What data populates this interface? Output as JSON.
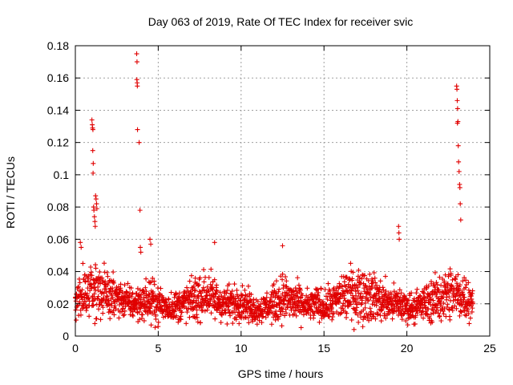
{
  "chart_data": {
    "type": "scatter",
    "title": "Day 063 of 2019, Rate Of TEC Index for receiver svic",
    "xlabel": "GPS time / hours",
    "ylabel": "ROTI / TECUs",
    "xlim": [
      0,
      25
    ],
    "ylim": [
      0,
      0.18
    ],
    "xticks": [
      "0",
      "5",
      "10",
      "15",
      "20",
      "25"
    ],
    "yticks": [
      "0",
      "0.02",
      "0.04",
      "0.06",
      "0.08",
      "0.1",
      "0.12",
      "0.14",
      "0.16",
      "0.18"
    ],
    "xtick_values": [
      0,
      5,
      10,
      15,
      20,
      25
    ],
    "ytick_values": [
      0,
      0.02,
      0.04,
      0.06,
      0.08,
      0.1,
      0.12,
      0.14,
      0.16,
      0.18
    ],
    "grid": true,
    "marker": "+",
    "color": "#e00000",
    "baseline_profile": {
      "x": [
        0,
        0.5,
        1,
        1.5,
        2,
        2.5,
        3,
        3.5,
        4,
        4.5,
        5,
        5.5,
        6,
        6.5,
        7,
        7.5,
        8,
        8.5,
        9,
        9.5,
        10,
        10.5,
        11,
        11.5,
        12,
        12.5,
        13,
        13.5,
        14,
        14.5,
        15,
        15.5,
        16,
        16.5,
        17,
        17.5,
        18,
        18.5,
        19,
        19.5,
        20,
        20.5,
        21,
        21.5,
        22,
        22.5,
        23,
        23.5,
        24
      ],
      "y_mean": [
        0.022,
        0.026,
        0.028,
        0.028,
        0.026,
        0.024,
        0.022,
        0.02,
        0.021,
        0.022,
        0.02,
        0.018,
        0.018,
        0.02,
        0.022,
        0.024,
        0.026,
        0.022,
        0.02,
        0.02,
        0.022,
        0.018,
        0.016,
        0.018,
        0.02,
        0.024,
        0.022,
        0.02,
        0.018,
        0.02,
        0.018,
        0.02,
        0.024,
        0.026,
        0.026,
        0.026,
        0.024,
        0.022,
        0.02,
        0.02,
        0.018,
        0.018,
        0.02,
        0.022,
        0.024,
        0.026,
        0.026,
        0.024,
        0.022
      ],
      "y_spread": [
        0.012,
        0.016,
        0.018,
        0.016,
        0.014,
        0.012,
        0.012,
        0.01,
        0.012,
        0.014,
        0.012,
        0.01,
        0.01,
        0.012,
        0.014,
        0.016,
        0.016,
        0.014,
        0.012,
        0.012,
        0.012,
        0.01,
        0.008,
        0.01,
        0.012,
        0.016,
        0.014,
        0.012,
        0.01,
        0.012,
        0.01,
        0.012,
        0.016,
        0.018,
        0.018,
        0.018,
        0.016,
        0.014,
        0.012,
        0.012,
        0.01,
        0.01,
        0.012,
        0.014,
        0.016,
        0.018,
        0.018,
        0.016,
        0.012
      ],
      "x_step": 0.012
    },
    "outlier_points": {
      "x": [
        1.0,
        1.02,
        1.04,
        1.06,
        1.05,
        1.08,
        1.07,
        1.1,
        1.12,
        1.15,
        1.18,
        1.2,
        1.22,
        1.25,
        1.28,
        1.3,
        3.7,
        3.72,
        3.71,
        3.73,
        3.74,
        3.75,
        3.85,
        3.9,
        3.92,
        3.95,
        19.5,
        19.52,
        19.54,
        23.0,
        23.02,
        23.04,
        23.06,
        23.08,
        23.05,
        23.1,
        23.12,
        23.15,
        23.18,
        23.2,
        23.22,
        23.25,
        4.5,
        4.55,
        8.4,
        12.5,
        0.3,
        0.35
      ],
      "y": [
        0.134,
        0.131,
        0.129,
        0.128,
        0.115,
        0.107,
        0.101,
        0.08,
        0.078,
        0.074,
        0.071,
        0.068,
        0.087,
        0.085,
        0.082,
        0.079,
        0.175,
        0.17,
        0.159,
        0.157,
        0.155,
        0.128,
        0.12,
        0.078,
        0.055,
        0.052,
        0.068,
        0.064,
        0.06,
        0.155,
        0.153,
        0.146,
        0.141,
        0.133,
        0.132,
        0.118,
        0.108,
        0.102,
        0.094,
        0.092,
        0.082,
        0.072,
        0.06,
        0.057,
        0.058,
        0.056,
        0.058,
        0.055
      ]
    }
  }
}
